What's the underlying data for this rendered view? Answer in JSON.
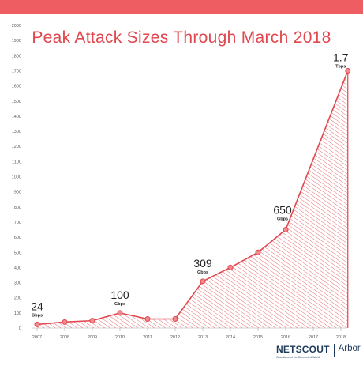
{
  "chart_data": {
    "type": "area",
    "title": "Peak Attack Sizes Through March 2018",
    "xlabel": "",
    "ylabel": "",
    "x": [
      "2007",
      "2008",
      "2009",
      "2010",
      "2011",
      "2012",
      "2013",
      "2014",
      "2015",
      "2016",
      "2017",
      "2018"
    ],
    "points": [
      {
        "x": 2007.0,
        "y": 24
      },
      {
        "x": 2008.0,
        "y": 40
      },
      {
        "x": 2009.0,
        "y": 49
      },
      {
        "x": 2010.0,
        "y": 100
      },
      {
        "x": 2011.0,
        "y": 60
      },
      {
        "x": 2012.0,
        "y": 60
      },
      {
        "x": 2013.0,
        "y": 309
      },
      {
        "x": 2014.0,
        "y": 400
      },
      {
        "x": 2015.0,
        "y": 500
      },
      {
        "x": 2016.0,
        "y": 650
      },
      {
        "x": 2018.25,
        "y": 1700
      }
    ],
    "ylim": [
      0,
      2000
    ],
    "y_ticks": [
      0,
      100,
      200,
      300,
      400,
      500,
      600,
      700,
      800,
      900,
      1000,
      1100,
      1200,
      1300,
      1400,
      1500,
      1600,
      1700,
      1800,
      1900,
      2000
    ],
    "grid": false,
    "annotations": [
      {
        "x": 2007.0,
        "y": 24,
        "value": "24",
        "unit": "Gbps"
      },
      {
        "x": 2010.0,
        "y": 100,
        "value": "100",
        "unit": "Gbps"
      },
      {
        "x": 2013.0,
        "y": 309,
        "value": "309",
        "unit": "Gbps"
      },
      {
        "x": 2016.0,
        "y": 650,
        "value": "650",
        "unit": "Gbps"
      },
      {
        "x": 2018.25,
        "y": 1700,
        "value": "1.7",
        "unit": "Tbps"
      }
    ],
    "colors": {
      "line": "#e0474e",
      "fill_hatch": "#e0474e",
      "marker": "#f08a8d",
      "axis": "#aaaaaa"
    }
  },
  "brand": {
    "name": "NETSCOUT",
    "tagline": "Guardians of the Connected World",
    "partner": "Arbor"
  },
  "colors": {
    "top_bar": "#ee5d62",
    "title": "#e0474e",
    "brand": "#1f3b5c"
  }
}
